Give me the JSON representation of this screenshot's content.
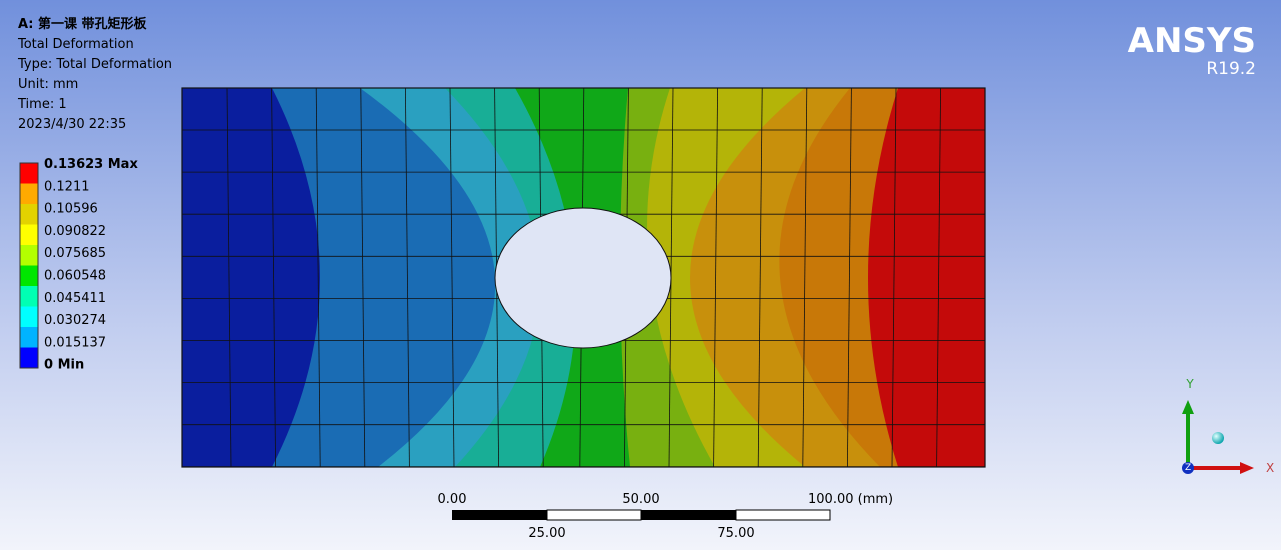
{
  "header": {
    "lines": [
      "A: 第一课 带孔矩形板",
      "Total Deformation",
      "Type: Total Deformation",
      "Unit: mm",
      "Time: 1",
      "2023/4/30 22:35"
    ]
  },
  "legend": {
    "labels": [
      "0.13623 Max",
      "0.1211",
      "0.10596",
      "0.090822",
      "0.075685",
      "0.060548",
      "0.045411",
      "0.030274",
      "0.015137",
      "0 Min"
    ]
  },
  "logo": {
    "name": "ANSYS",
    "version": "R19.2"
  },
  "scale_bar": {
    "top_labels": [
      "0.00",
      "50.00",
      "100.00 (mm)"
    ],
    "bottom_labels": [
      "25.00",
      "75.00"
    ]
  },
  "triad": {
    "x": "X",
    "y": "Y",
    "z": "Z"
  }
}
